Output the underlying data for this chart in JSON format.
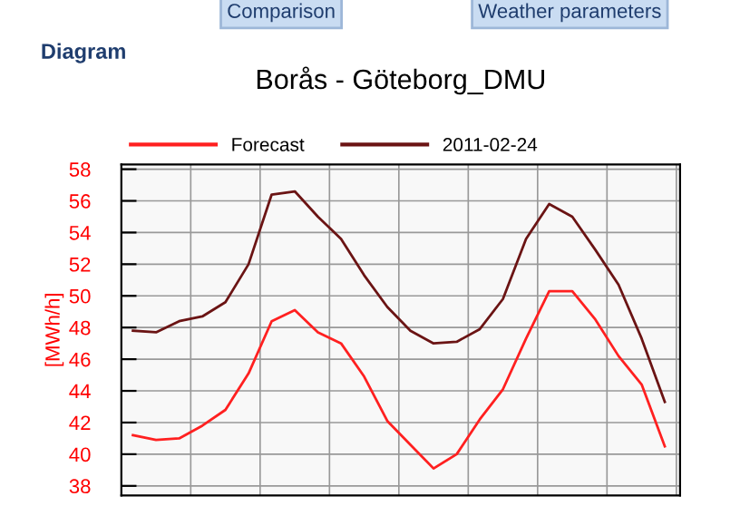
{
  "chart_data": {
    "type": "line",
    "title": "Borås - Göteborg_DMU",
    "ylabel": "[MWh/h]",
    "annotations": [
      "Comparison",
      "Weather parameters",
      "Diagram"
    ],
    "categories": [
      null,
      null,
      null,
      null,
      null,
      null,
      null,
      null,
      null,
      null,
      null,
      null,
      null,
      null,
      null,
      null,
      null,
      null,
      null,
      null,
      null,
      null,
      null,
      null
    ],
    "series": [
      {
        "name": "Forecast",
        "color": "#ff2020",
        "values": [
          41.2,
          40.9,
          41.0,
          41.8,
          42.8,
          45.1,
          48.4,
          49.1,
          47.7,
          47.0,
          44.9,
          42.1,
          40.6,
          39.1,
          40.0,
          42.2,
          44.1,
          47.3,
          50.3,
          50.3,
          48.5,
          46.2,
          44.4,
          40.5
        ]
      },
      {
        "name": "2011-02-24",
        "color": "#6b1414",
        "values": [
          47.8,
          47.7,
          48.4,
          48.7,
          49.6,
          52.0,
          56.4,
          56.6,
          55.0,
          53.6,
          51.3,
          49.3,
          47.8,
          47.0,
          47.1,
          47.9,
          49.8,
          53.6,
          55.8,
          55.0,
          52.9,
          50.7,
          47.3,
          43.3
        ]
      }
    ],
    "ylim": [
      37.4,
      58.3
    ],
    "yticks": [
      38,
      40,
      42,
      44,
      46,
      48,
      50,
      52,
      54,
      56,
      58
    ],
    "tick_labels": "y",
    "grid": true,
    "legend": "top",
    "marker": "none",
    "line_style": "solid"
  }
}
